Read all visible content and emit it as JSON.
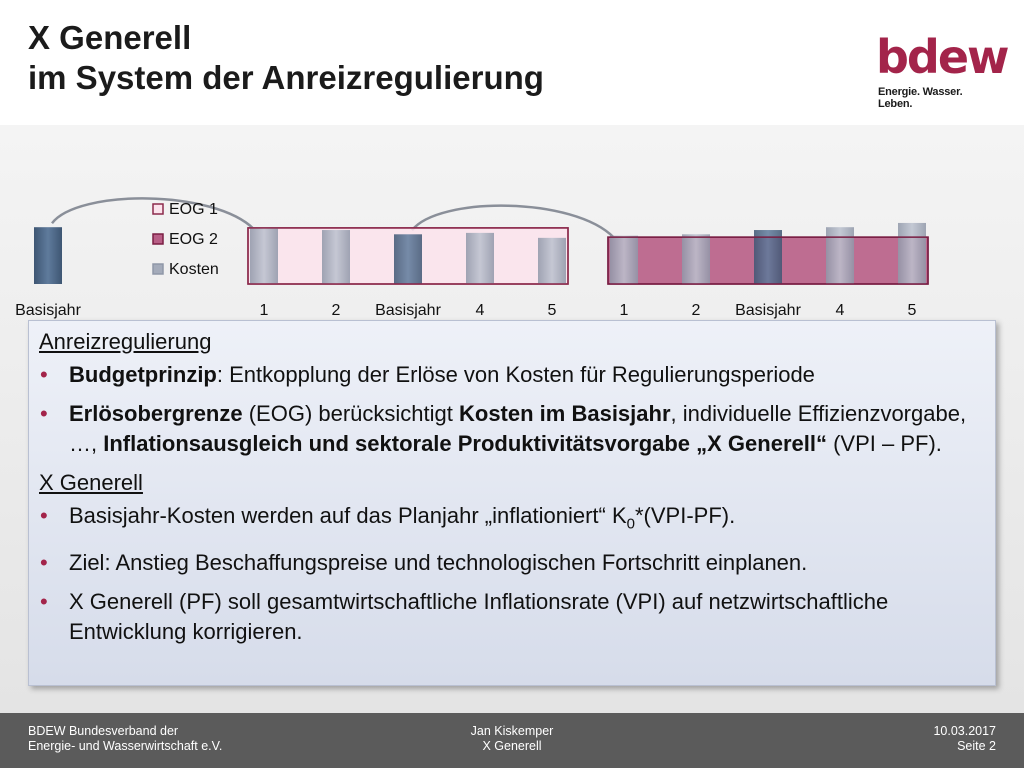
{
  "header": {
    "title_line1": "X Generell",
    "title_line2": "im System der Anreizregulierung",
    "logo_text": "bdew",
    "logo_tagline": "Energie. Wasser. Leben."
  },
  "chart_data": {
    "type": "bar",
    "categories": [
      "Basisjahr",
      "",
      "",
      "1",
      "2",
      "Basisjahr",
      "4",
      "5",
      "1",
      "2",
      "Basisjahr",
      "4",
      "5"
    ],
    "series": [
      {
        "name": "EOG 1",
        "values": [
          0,
          0,
          0,
          0.79,
          0.79,
          0.79,
          0.79,
          0.79,
          0,
          0,
          0,
          0,
          0
        ]
      },
      {
        "name": "EOG 2",
        "values": [
          0,
          0,
          0,
          0,
          0,
          0,
          0,
          0,
          0.66,
          0.66,
          0.66,
          0.66,
          0.66
        ]
      },
      {
        "name": "Kosten",
        "values": [
          0.8,
          0,
          0,
          0.8,
          0.76,
          0.7,
          0.72,
          0.65,
          0.68,
          0.7,
          0.76,
          0.8,
          0.86
        ]
      }
    ],
    "highlight_categories": [
      0,
      5,
      10
    ],
    "legend": [
      "EOG 1",
      "EOG 2",
      "Kosten"
    ],
    "legend_position": "left",
    "title": "",
    "xlabel": "",
    "ylabel": "",
    "colors": {
      "eog1_fill": "#fbe3ec",
      "eog1_stroke": "#8c2a4c",
      "eog2_fill": "#b85e86",
      "eog2_stroke": "#7a1f44",
      "kosten": "#a4abba",
      "basisjahr": "#4f6a89"
    }
  },
  "content": {
    "section1_title": "Anreizregulierung",
    "bullet1": [
      {
        "t": "Budgetprinzip",
        "b": true
      },
      {
        "t": ": Entkopplung der Erlöse von Kosten für Regulierungsperiode",
        "b": false
      }
    ],
    "bullet2": [
      {
        "t": "Erlösobergrenze",
        "b": true
      },
      {
        "t": " (EOG) berücksichtigt ",
        "b": false
      },
      {
        "t": "Kosten im Basisjahr",
        "b": true
      },
      {
        "t": ", individuelle Effizienzvorgabe, …, ",
        "b": false
      },
      {
        "t": "Inflationsausgleich und sektorale Produktivitätsvorgabe „X Generell“",
        "b": true
      },
      {
        "t": " (VPI – PF).",
        "b": false
      }
    ],
    "section2_title": "X Generell",
    "bullet3": [
      {
        "t": "Basisjahr-Kosten werden auf das Planjahr „inflationiert“ K",
        "b": false
      },
      {
        "t": "0",
        "b": false,
        "sub": true
      },
      {
        "t": "*(VPI-PF).",
        "b": false
      }
    ],
    "bullet4": "Ziel: Anstieg Beschaffungspreise und technologischen Fortschritt einplanen.",
    "bullet5": "X Generell (PF) soll gesamtwirtschaftliche Inflationsrate (VPI) auf netzwirtschaftliche Entwicklung korrigieren."
  },
  "footer": {
    "org_line1": "BDEW Bundesverband der",
    "org_line2": "Energie- und Wasserwirtschaft e.V.",
    "author": "Jan Kiskemper",
    "topic": "X Generell",
    "date": "10.03.2017",
    "page": "Seite 2"
  }
}
